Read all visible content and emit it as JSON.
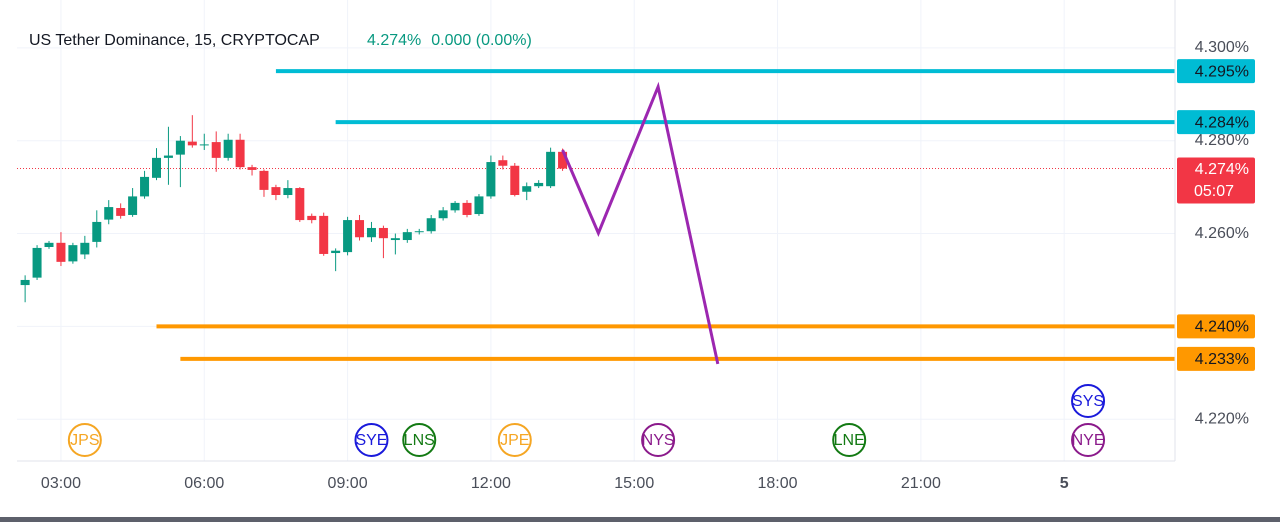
{
  "chart_data": {
    "type": "candlestick",
    "title": "US Tether Dominance, 15, CRYPTOCAP",
    "price": "4.274%",
    "change": "0.000 (0.00%)",
    "up_color": "#089981",
    "down_color": "#f23645",
    "x": [
      2.25,
      2.5,
      2.75,
      3,
      3.25,
      3.5,
      3.75,
      4,
      4.25,
      4.5,
      4.75,
      5,
      5.25,
      5.5,
      5.75,
      6,
      6.25,
      6.5,
      6.75,
      7,
      7.25,
      7.5,
      7.75,
      8,
      8.25,
      8.5,
      8.75,
      9,
      9.25,
      9.5,
      9.75,
      10,
      10.25,
      10.5,
      10.75,
      11,
      11.25,
      11.5,
      11.75,
      12,
      12.25,
      12.5,
      12.75,
      13,
      13.25,
      13.5
    ],
    "open": [
      4.2489,
      4.2505,
      4.2571,
      4.258,
      4.254,
      4.2555,
      4.2582,
      4.263,
      4.2655,
      4.264,
      4.268,
      4.272,
      4.2763,
      4.277,
      4.2798,
      4.279,
      4.2797,
      4.2763,
      4.2802,
      4.2743,
      4.2735,
      4.27,
      4.2683,
      4.2698,
      4.2638,
      4.2638,
      4.2558,
      4.256,
      4.2629,
      4.2592,
      4.2612,
      4.2586,
      4.2586,
      4.2603,
      4.2605,
      4.2633,
      4.265,
      4.2666,
      4.2642,
      4.268,
      4.2758,
      4.2746,
      4.269,
      4.2702,
      4.2702,
      4.2776
    ],
    "high": [
      4.251,
      4.2575,
      4.2584,
      4.2603,
      4.258,
      4.2595,
      4.265,
      4.2672,
      4.2665,
      4.2698,
      4.2735,
      4.2784,
      4.283,
      4.281,
      4.2855,
      4.2815,
      4.282,
      4.2815,
      4.2815,
      4.2748,
      4.2738,
      4.2705,
      4.2715,
      4.27,
      4.2643,
      4.2645,
      4.2568,
      4.2636,
      4.264,
      4.2625,
      4.2617,
      4.26,
      4.261,
      4.261,
      4.264,
      4.2657,
      4.267,
      4.2672,
      4.2685,
      4.2768,
      4.2768,
      4.2752,
      4.271,
      4.2715,
      4.2785,
      4.2783
    ],
    "low": [
      4.2452,
      4.25,
      4.2567,
      4.253,
      4.2535,
      4.2545,
      4.257,
      4.262,
      4.2632,
      4.2636,
      4.2675,
      4.2715,
      4.2705,
      4.27,
      4.2785,
      4.278,
      4.2733,
      4.2757,
      4.2738,
      4.2725,
      4.2679,
      4.2672,
      4.2676,
      4.2625,
      4.2622,
      4.2552,
      4.2519,
      4.2553,
      4.2585,
      4.2582,
      4.2547,
      4.2555,
      4.258,
      4.2598,
      4.26,
      4.2628,
      4.2645,
      4.2635,
      4.2638,
      4.2675,
      4.2738,
      4.268,
      4.2672,
      4.2698,
      4.2698,
      4.2735
    ],
    "close": [
      4.25,
      4.2569,
      4.258,
      4.2539,
      4.2575,
      4.258,
      4.2625,
      4.2657,
      4.2638,
      4.268,
      4.2722,
      4.2763,
      4.2768,
      4.28,
      4.279,
      4.2792,
      4.2763,
      4.2802,
      4.2743,
      4.2737,
      4.2694,
      4.2683,
      4.2698,
      4.2629,
      4.2629,
      4.2556,
      4.2563,
      4.2629,
      4.2592,
      4.2612,
      4.259,
      4.259,
      4.2603,
      4.2605,
      4.2633,
      4.265,
      4.2666,
      4.264,
      4.268,
      4.2754,
      4.2746,
      4.2683,
      4.2702,
      4.2709,
      4.2776,
      4.274
    ],
    "last": {
      "value": 4.274,
      "label": "4.274%",
      "countdown": "05:07",
      "color": "#f23645"
    },
    "levels": [
      {
        "value": 4.295,
        "label": "4.295%",
        "start": 7.5,
        "color": "#00bcd4"
      },
      {
        "value": 4.284,
        "label": "4.284%",
        "start": 8.75,
        "color": "#00bcd4"
      },
      {
        "value": 4.24,
        "label": "4.240%",
        "start": 5,
        "color": "#ff9800"
      },
      {
        "value": 4.233,
        "label": "4.233%",
        "start": 5.5,
        "color": "#ff9800"
      }
    ],
    "projection": {
      "color": "#9c27b0",
      "x": [
        13.5,
        14.25,
        15.5,
        16.75
      ],
      "values": [
        4.278,
        4.2601,
        4.2916,
        4.2319
      ]
    },
    "sessions": [
      {
        "label": "JPS",
        "x": 3.5,
        "color": "#f5a623"
      },
      {
        "label": "SYE",
        "x": 9.5,
        "color": "#1a1adb"
      },
      {
        "label": "LNS",
        "x": 10.5,
        "color": "#137a13"
      },
      {
        "label": "JPE",
        "x": 12.5,
        "color": "#f5a623"
      },
      {
        "label": "NYS",
        "x": 15.5,
        "color": "#8b1a8b"
      },
      {
        "label": "LNE",
        "x": 19.5,
        "color": "#137a13"
      },
      {
        "label": "NYE",
        "x": 24.5,
        "color": "#8b1a8b"
      },
      {
        "label": "SYS",
        "x": 24.5,
        "color": "#1a1adb"
      }
    ],
    "xlim": [
      2.08,
      26.32
    ],
    "ylim": [
      4.211,
      4.306
    ],
    "xticks": [
      {
        "value": 3,
        "label": "03:00"
      },
      {
        "value": 6,
        "label": "06:00"
      },
      {
        "value": 9,
        "label": "09:00"
      },
      {
        "value": 12,
        "label": "12:00"
      },
      {
        "value": 15,
        "label": "15:00"
      },
      {
        "value": 18,
        "label": "18:00"
      },
      {
        "value": 21,
        "label": "21:00"
      },
      {
        "value": 24,
        "label": "5"
      }
    ],
    "yticks": [
      {
        "value": 4.3,
        "label": "4.300%"
      },
      {
        "value": 4.28,
        "label": "4.280%"
      },
      {
        "value": 4.26,
        "label": "4.260%"
      },
      {
        "value": 4.24,
        "label": "4.240%"
      },
      {
        "value": 4.22,
        "label": "4.220%"
      }
    ],
    "grid": true
  }
}
